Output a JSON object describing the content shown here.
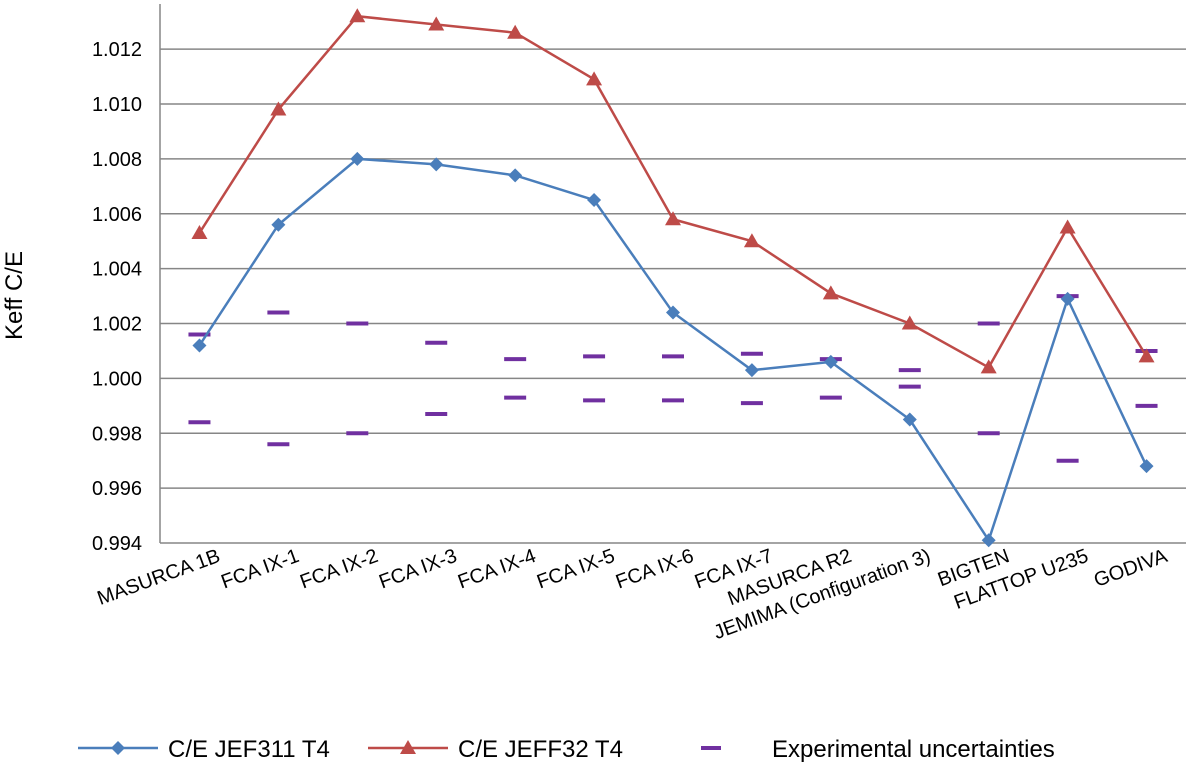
{
  "chart_data": {
    "type": "line",
    "title": "",
    "xlabel": "",
    "ylabel": "Keff C/E",
    "ylim": [
      0.994,
      1.0135
    ],
    "yticks": [
      0.994,
      0.996,
      0.998,
      1.0,
      1.002,
      1.004,
      1.006,
      1.008,
      1.01,
      1.012
    ],
    "ytick_labels": [
      "0.994",
      "0.996",
      "0.998",
      "1.000",
      "1.002",
      "1.004",
      "1.006",
      "1.008",
      "1.010",
      "1.012"
    ],
    "grid": "horizontal",
    "legend_position": "bottom",
    "categories": [
      "MASURCA 1B",
      "FCA IX-1",
      "FCA IX-2",
      "FCA IX-3",
      "FCA IX-4",
      "FCA IX-5",
      "FCA IX-6",
      "FCA IX-7",
      "MASURCA R2",
      "JEMIMA (Configuration 3)",
      "BIGTEN",
      "FLATTOP U235",
      "GODIVA"
    ],
    "series": [
      {
        "name": "C/E JEF311 T4",
        "color": "#4a7ebb",
        "marker": "diamond",
        "values": [
          1.0012,
          1.0056,
          1.008,
          1.0078,
          1.0074,
          1.0065,
          1.0024,
          1.0003,
          1.0006,
          0.9985,
          0.9941,
          1.0029,
          0.9968
        ]
      },
      {
        "name": "C/E JEFF32 T4",
        "color": "#be4b48",
        "marker": "triangle",
        "values": [
          1.0053,
          1.0098,
          1.0132,
          1.0129,
          1.0126,
          1.0109,
          1.0058,
          1.005,
          1.0031,
          1.002,
          1.0004,
          1.0055,
          1.0008
        ]
      },
      {
        "name": "Experimental uncertainties",
        "color": "#7030a0",
        "marker": "dash",
        "upper": [
          1.0016,
          1.0024,
          1.002,
          1.0013,
          1.0007,
          1.0008,
          1.0008,
          1.0009,
          1.0007,
          1.0003,
          1.002,
          1.003,
          1.001
        ],
        "lower": [
          0.9984,
          0.9976,
          0.998,
          0.9987,
          0.9993,
          0.9992,
          0.9992,
          0.9991,
          0.9993,
          0.9997,
          0.998,
          0.997,
          0.999
        ]
      }
    ]
  }
}
